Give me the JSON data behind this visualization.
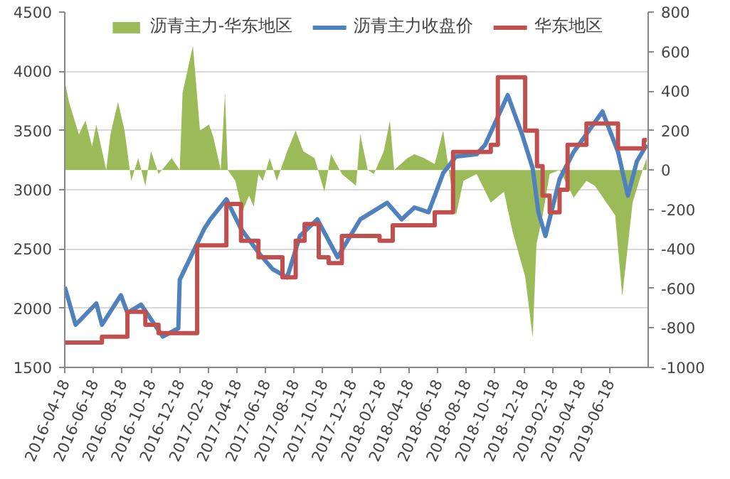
{
  "chart_data": {
    "type": "line",
    "legend": "top",
    "grid": "y",
    "xlim": [
      "2016-04-18",
      "2019-09-08"
    ],
    "xticks": [
      "2016-04-18",
      "2016-06-18",
      "2016-08-18",
      "2016-10-18",
      "2016-12-18",
      "2017-02-18",
      "2017-04-18",
      "2017-06-18",
      "2017-08-18",
      "2017-10-18",
      "2017-12-18",
      "2018-02-18",
      "2018-04-18",
      "2018-06-18",
      "2018-08-18",
      "2018-10-18",
      "2018-12-18",
      "2019-02-18",
      "2019-04-18",
      "2019-06-18"
    ],
    "ylim": [
      1500,
      4500
    ],
    "yticks": [
      1500,
      2000,
      2500,
      3000,
      3500,
      4000,
      4500
    ],
    "y2lim": [
      -1000,
      800
    ],
    "y2ticks": [
      -1000,
      -800,
      -600,
      -400,
      -200,
      0,
      200,
      400,
      600,
      800
    ],
    "series": [
      {
        "name": "沥青主力-华东地区",
        "type": "area",
        "axis": "y2",
        "color": "#9bbb59",
        "x": [
          "2016-04-18",
          "2016-04-27",
          "2016-05-18",
          "2016-06-01",
          "2016-06-15",
          "2016-06-24",
          "2016-07-15",
          "2016-07-24",
          "2016-08-09",
          "2016-08-23",
          "2016-09-03",
          "2016-09-06",
          "2016-09-21",
          "2016-10-06",
          "2016-10-18",
          "2016-11-03",
          "2016-12-01",
          "2016-12-18",
          "2016-12-24",
          "2017-01-15",
          "2017-01-30",
          "2017-02-18",
          "2017-02-27",
          "2017-03-15",
          "2017-03-24",
          "2017-03-30",
          "2017-04-15",
          "2017-04-30",
          "2017-05-14",
          "2017-05-24",
          "2017-06-03",
          "2017-06-12",
          "2017-06-27",
          "2017-07-12",
          "2017-08-03",
          "2017-08-21",
          "2017-09-06",
          "2017-09-30",
          "2017-10-21",
          "2017-11-04",
          "2017-11-27",
          "2017-12-27",
          "2018-01-05",
          "2018-01-21",
          "2018-02-03",
          "2018-02-24",
          "2018-03-09",
          "2018-03-18",
          "2018-04-15",
          "2018-04-30",
          "2018-05-21",
          "2018-06-12",
          "2018-06-30",
          "2018-07-12",
          "2018-07-27",
          "2018-08-12",
          "2018-09-09",
          "2018-10-09",
          "2018-11-06",
          "2018-11-24",
          "2018-12-21",
          "2019-01-06",
          "2019-01-14",
          "2019-01-27",
          "2019-02-11",
          "2019-03-04",
          "2019-04-03",
          "2019-04-30",
          "2019-05-18",
          "2019-06-30",
          "2019-07-15",
          "2019-08-06",
          "2019-08-27",
          "2019-09-05"
        ],
        "values": [
          450,
          345,
          180,
          250,
          120,
          230,
          0,
          180,
          345,
          200,
          0,
          -55,
          60,
          -80,
          95,
          -20,
          60,
          0,
          390,
          630,
          200,
          230,
          170,
          0,
          390,
          0,
          -55,
          -210,
          -130,
          -185,
          -20,
          -55,
          60,
          -55,
          95,
          200,
          95,
          60,
          -110,
          80,
          -20,
          -80,
          180,
          0,
          -20,
          95,
          250,
          0,
          60,
          80,
          60,
          30,
          200,
          0,
          -230,
          -55,
          -20,
          -165,
          -110,
          -310,
          -540,
          -850,
          -375,
          -230,
          -20,
          0,
          -140,
          -55,
          -80,
          -230,
          -640,
          -165,
          0,
          60
        ]
      },
      {
        "name": "沥青主力收盘价",
        "color": "#4f81bd",
        "x": [
          "2016-04-18",
          "2016-05-11",
          "2016-06-24",
          "2016-07-06",
          "2016-08-15",
          "2016-08-29",
          "2016-09-27",
          "2016-11-12",
          "2016-12-15",
          "2016-12-18",
          "2017-02-08",
          "2017-02-21",
          "2017-03-27",
          "2017-04-27",
          "2017-06-03",
          "2017-07-03",
          "2017-08-03",
          "2017-08-30",
          "2017-10-06",
          "2017-11-18",
          "2018-01-05",
          "2018-03-03",
          "2018-04-03",
          "2018-04-30",
          "2018-05-30",
          "2018-06-30",
          "2018-07-27",
          "2018-09-09",
          "2018-09-27",
          "2018-11-14",
          "2018-12-15",
          "2019-01-06",
          "2019-01-18",
          "2019-02-02",
          "2019-03-04",
          "2019-04-03",
          "2019-06-03",
          "2019-07-06",
          "2019-07-27",
          "2019-08-15",
          "2019-09-05"
        ],
        "values": [
          2180,
          1860,
          2040,
          1860,
          2110,
          1960,
          2030,
          1760,
          1830,
          2240,
          2670,
          2750,
          2920,
          2670,
          2470,
          2330,
          2260,
          2610,
          2750,
          2430,
          2750,
          2890,
          2750,
          2850,
          2810,
          3140,
          3280,
          3300,
          3380,
          3800,
          3460,
          3180,
          2810,
          2610,
          3090,
          3320,
          3660,
          3320,
          2950,
          3240,
          3380
        ]
      },
      {
        "name": "华东地区",
        "type": "step",
        "color": "#c0504d",
        "x": [
          "2016-04-18",
          "2016-07-06",
          "2016-08-29",
          "2016-10-06",
          "2016-11-03",
          "2017-01-24",
          "2017-03-27",
          "2017-04-27",
          "2017-06-03",
          "2017-07-24",
          "2017-08-21",
          "2017-09-09",
          "2017-10-09",
          "2017-10-30",
          "2017-11-27",
          "2018-02-15",
          "2018-03-15",
          "2018-06-12",
          "2018-07-21",
          "2018-10-09",
          "2018-10-24",
          "2018-12-21",
          "2019-01-15",
          "2019-01-27",
          "2019-02-11",
          "2019-03-04",
          "2019-03-21",
          "2019-04-30",
          "2019-07-06",
          "2019-08-30",
          "2019-09-05"
        ],
        "values": [
          1710,
          1760,
          1970,
          1860,
          1790,
          2530,
          2880,
          2570,
          2430,
          2260,
          2570,
          2710,
          2430,
          2380,
          2610,
          2570,
          2700,
          2810,
          3320,
          3380,
          3950,
          3500,
          3200,
          2950,
          2810,
          3000,
          3380,
          3560,
          3350,
          3420,
          3420
        ]
      }
    ]
  }
}
